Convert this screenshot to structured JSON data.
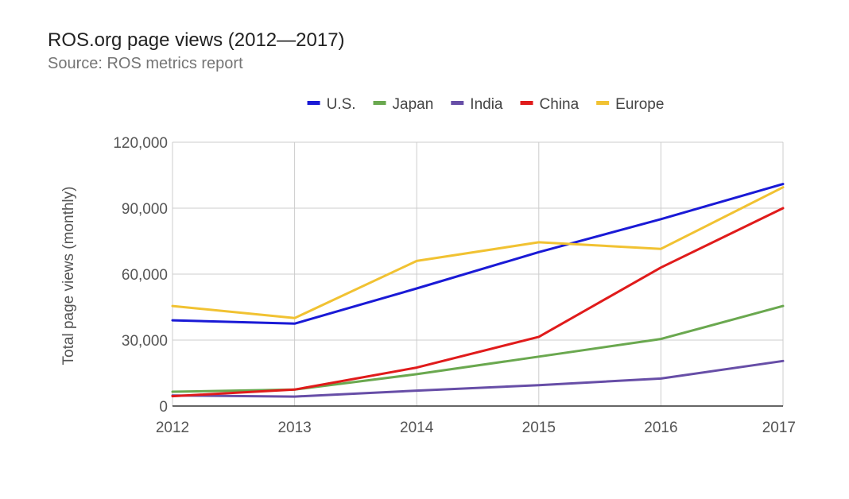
{
  "chart_data": {
    "type": "line",
    "title": "ROS.org page views (2012—2017)",
    "subtitle": "Source: ROS metrics report",
    "xlabel": "",
    "ylabel": "Total page views (monthly)",
    "categories": [
      "2012",
      "2013",
      "2014",
      "2015",
      "2016",
      "2017"
    ],
    "ylim": [
      0,
      120000
    ],
    "yticks": [
      0,
      30000,
      60000,
      90000,
      120000
    ],
    "ytick_labels": [
      "0",
      "30,000",
      "60,000",
      "90,000",
      "120,000"
    ],
    "grid": true,
    "legend_position": "top",
    "series": [
      {
        "name": "U.S.",
        "color": "#1a1ad6",
        "values": [
          39000,
          37500,
          53500,
          70000,
          85000,
          101000
        ]
      },
      {
        "name": "Japan",
        "color": "#6aa84f",
        "values": [
          6500,
          7500,
          14500,
          22500,
          30500,
          45500
        ]
      },
      {
        "name": "India",
        "color": "#674ea7",
        "values": [
          4800,
          4300,
          7000,
          9500,
          12500,
          20500
        ]
      },
      {
        "name": "China",
        "color": "#e01b1b",
        "values": [
          4500,
          7500,
          17500,
          31500,
          63000,
          90000
        ]
      },
      {
        "name": "Europe",
        "color": "#f1c232",
        "values": [
          45500,
          40000,
          66000,
          74500,
          71500,
          99500
        ]
      }
    ]
  }
}
